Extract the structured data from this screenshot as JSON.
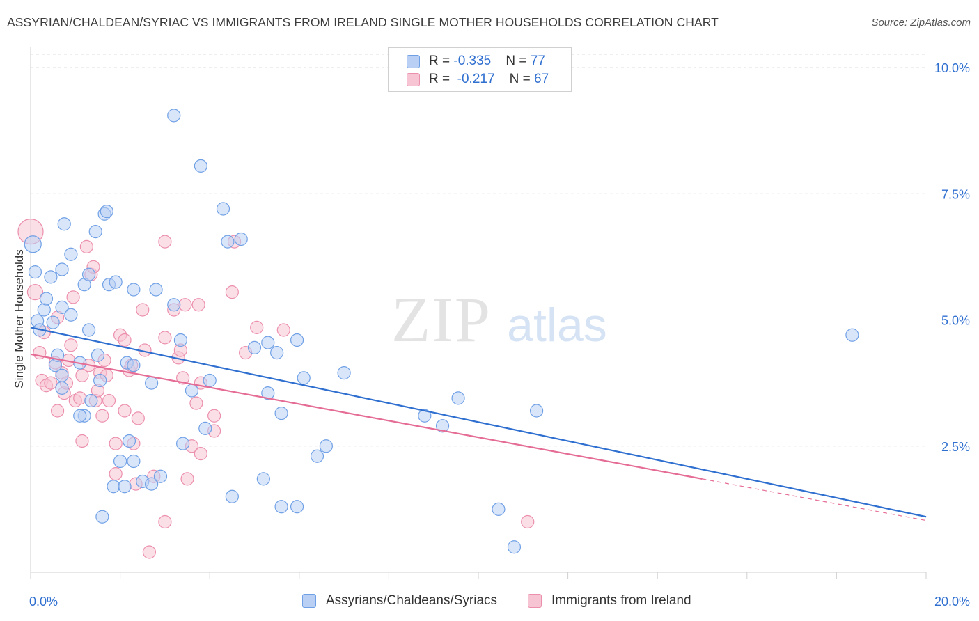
{
  "title": "ASSYRIAN/CHALDEAN/SYRIAC VS IMMIGRANTS FROM IRELAND SINGLE MOTHER HOUSEHOLDS CORRELATION CHART",
  "source": "Source: ZipAtlas.com",
  "watermark": {
    "zip": "ZIP",
    "atlas": "atlas"
  },
  "colors": {
    "blue": "#6fa0e6",
    "blue_fill": "#b9d0f4",
    "blue_line": "#2f6fd0",
    "pink": "#ec8fad",
    "pink_fill": "#f7c4d4",
    "pink_line": "#e56c95",
    "accent_text": "#2f6fd0",
    "grid": "#dcdcdc"
  },
  "legend": [
    {
      "r_label": "R = ",
      "r_value": "-0.335",
      "n_label": "N = ",
      "n_value": "77",
      "color": "blue"
    },
    {
      "r_label": "R = ",
      "r_value": "-0.217",
      "n_label": "N = ",
      "n_value": "67",
      "color": "pink"
    }
  ],
  "chart_data": {
    "type": "scatter",
    "title": "ASSYRIAN/CHALDEAN/SYRIAC VS IMMIGRANTS FROM IRELAND SINGLE MOTHER HOUSEHOLDS CORRELATION CHART",
    "xlabel": "",
    "ylabel": "Single Mother Households",
    "xlim": [
      0,
      20
    ],
    "ylim": [
      0,
      10.4
    ],
    "x_tick_labels": [
      "0.0%",
      "20.0%"
    ],
    "y_ticks": [
      2.5,
      5.0,
      7.5,
      10.0
    ],
    "y_tick_labels": [
      "2.5%",
      "5.0%",
      "7.5%",
      "10.0%"
    ],
    "grid": true,
    "legend_position": "top-center",
    "series": [
      {
        "name": "Assyrians/Chaldeans/Syriacs",
        "color": "blue",
        "trend": {
          "x": [
            0,
            20
          ],
          "y": [
            4.85,
            1.1
          ]
        },
        "points": [
          [
            0.05,
            6.5
          ],
          [
            0.1,
            5.95
          ],
          [
            0.15,
            4.98
          ],
          [
            0.2,
            4.8
          ],
          [
            0.3,
            5.2
          ],
          [
            0.35,
            5.42
          ],
          [
            0.45,
            5.85
          ],
          [
            0.5,
            4.95
          ],
          [
            0.55,
            4.1
          ],
          [
            0.6,
            4.3
          ],
          [
            0.7,
            5.25
          ],
          [
            0.7,
            3.65
          ],
          [
            0.7,
            3.9
          ],
          [
            0.7,
            6.0
          ],
          [
            0.75,
            6.9
          ],
          [
            0.9,
            6.3
          ],
          [
            0.9,
            5.1
          ],
          [
            1.1,
            4.15
          ],
          [
            1.2,
            5.7
          ],
          [
            1.3,
            5.9
          ],
          [
            1.2,
            3.1
          ],
          [
            1.3,
            4.8
          ],
          [
            1.35,
            3.4
          ],
          [
            1.45,
            6.75
          ],
          [
            1.5,
            4.3
          ],
          [
            1.55,
            3.8
          ],
          [
            1.65,
            7.1
          ],
          [
            1.7,
            7.15
          ],
          [
            1.75,
            5.7
          ],
          [
            1.85,
            1.7
          ],
          [
            1.9,
            5.75
          ],
          [
            2.0,
            2.2
          ],
          [
            2.1,
            1.7
          ],
          [
            2.15,
            4.15
          ],
          [
            2.2,
            2.6
          ],
          [
            2.3,
            4.1
          ],
          [
            2.3,
            2.2
          ],
          [
            2.3,
            5.6
          ],
          [
            2.5,
            1.8
          ],
          [
            2.7,
            1.75
          ],
          [
            2.7,
            3.75
          ],
          [
            2.8,
            5.6
          ],
          [
            2.9,
            1.9
          ],
          [
            3.2,
            9.05
          ],
          [
            3.2,
            5.3
          ],
          [
            3.35,
            4.6
          ],
          [
            3.4,
            2.55
          ],
          [
            3.6,
            3.6
          ],
          [
            3.8,
            8.05
          ],
          [
            3.9,
            2.85
          ],
          [
            4.0,
            3.8
          ],
          [
            4.3,
            7.2
          ],
          [
            4.4,
            6.55
          ],
          [
            4.5,
            1.5
          ],
          [
            4.7,
            6.6
          ],
          [
            5.0,
            4.45
          ],
          [
            5.2,
            1.85
          ],
          [
            5.3,
            4.55
          ],
          [
            5.3,
            3.55
          ],
          [
            5.5,
            4.35
          ],
          [
            5.6,
            3.15
          ],
          [
            5.6,
            1.3
          ],
          [
            5.95,
            4.6
          ],
          [
            5.95,
            1.3
          ],
          [
            6.1,
            3.85
          ],
          [
            6.4,
            2.3
          ],
          [
            6.6,
            2.5
          ],
          [
            7.0,
            3.95
          ],
          [
            8.8,
            3.1
          ],
          [
            9.2,
            2.9
          ],
          [
            9.55,
            3.45
          ],
          [
            10.45,
            1.25
          ],
          [
            10.8,
            0.5
          ],
          [
            11.3,
            3.2
          ],
          [
            18.35,
            4.7
          ],
          [
            1.6,
            1.1
          ],
          [
            1.1,
            3.1
          ]
        ]
      },
      {
        "name": "Immigrants from Ireland",
        "color": "pink",
        "trend": {
          "x": [
            0,
            15
          ],
          "y": [
            4.32,
            1.85
          ]
        },
        "points": [
          [
            0.0,
            6.75
          ],
          [
            0.1,
            5.55
          ],
          [
            0.2,
            4.35
          ],
          [
            0.25,
            3.8
          ],
          [
            0.3,
            4.75
          ],
          [
            0.35,
            3.7
          ],
          [
            0.45,
            3.75
          ],
          [
            0.55,
            4.15
          ],
          [
            0.6,
            5.05
          ],
          [
            0.6,
            3.2
          ],
          [
            0.7,
            3.95
          ],
          [
            0.75,
            3.55
          ],
          [
            0.8,
            3.75
          ],
          [
            0.85,
            4.2
          ],
          [
            0.9,
            4.5
          ],
          [
            0.95,
            5.45
          ],
          [
            1.0,
            3.4
          ],
          [
            1.1,
            3.45
          ],
          [
            1.15,
            3.9
          ],
          [
            1.15,
            2.6
          ],
          [
            1.25,
            6.45
          ],
          [
            1.3,
            4.1
          ],
          [
            1.35,
            5.9
          ],
          [
            1.4,
            6.05
          ],
          [
            1.45,
            3.4
          ],
          [
            1.5,
            3.6
          ],
          [
            1.55,
            3.95
          ],
          [
            1.6,
            3.1
          ],
          [
            1.65,
            4.2
          ],
          [
            1.7,
            3.9
          ],
          [
            1.75,
            3.4
          ],
          [
            1.9,
            2.55
          ],
          [
            1.9,
            1.95
          ],
          [
            2.0,
            4.7
          ],
          [
            2.1,
            4.6
          ],
          [
            2.1,
            3.2
          ],
          [
            2.2,
            4.0
          ],
          [
            2.25,
            4.1
          ],
          [
            2.3,
            2.55
          ],
          [
            2.35,
            1.75
          ],
          [
            2.4,
            3.05
          ],
          [
            2.5,
            5.2
          ],
          [
            2.55,
            4.4
          ],
          [
            2.65,
            0.4
          ],
          [
            2.75,
            1.9
          ],
          [
            3.0,
            1.0
          ],
          [
            3.0,
            4.65
          ],
          [
            3.0,
            6.55
          ],
          [
            3.2,
            5.2
          ],
          [
            3.3,
            4.25
          ],
          [
            3.35,
            4.4
          ],
          [
            3.4,
            3.85
          ],
          [
            3.45,
            5.3
          ],
          [
            3.5,
            1.85
          ],
          [
            3.6,
            2.5
          ],
          [
            3.7,
            3.35
          ],
          [
            3.75,
            5.3
          ],
          [
            3.8,
            2.35
          ],
          [
            3.8,
            3.75
          ],
          [
            4.1,
            3.1
          ],
          [
            4.1,
            2.8
          ],
          [
            4.5,
            5.55
          ],
          [
            4.55,
            6.55
          ],
          [
            4.8,
            4.35
          ],
          [
            5.05,
            4.85
          ],
          [
            5.65,
            4.8
          ],
          [
            11.1,
            1.0
          ]
        ]
      }
    ]
  },
  "x_axis": {
    "min_label": "0.0%",
    "max_label": "20.0%"
  },
  "bottom_legend": [
    {
      "label": "Assyrians/Chaldeans/Syriacs",
      "color": "blue"
    },
    {
      "label": "Immigrants from Ireland",
      "color": "pink"
    }
  ]
}
